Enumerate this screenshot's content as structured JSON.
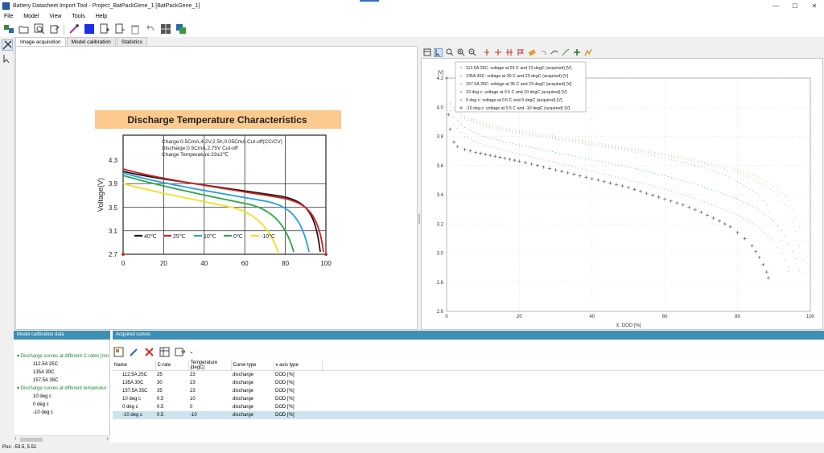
{
  "window": {
    "title": "Battery Datasheet Import Tool - Project_BatPackGene_1 [BatPackGene_1]",
    "minimize": "—",
    "maximize": "☐",
    "close": "✕"
  },
  "menu": [
    "File",
    "Model",
    "View",
    "Tools",
    "Help"
  ],
  "tabs": [
    "Image acquisition",
    "Model calibration",
    "Statistics"
  ],
  "datasheet": {
    "partial_header": "",
    "title": "Discharge Temperature Characteristics",
    "conditions": [
      "Charge:0.5CmA,4.2V,2.5h,0.05CmA Cut-off(CC/CV)",
      "Discharge:0.5CmA,2.75V Cut-off",
      "Charge Temperature:23±2℃"
    ],
    "ylabel": "Voltage(V)",
    "yticks": [
      "4.3",
      "3.9",
      "3.5",
      "3.1",
      "2.7"
    ],
    "xticks": [
      "0",
      "20",
      "40",
      "60",
      "80",
      "100"
    ],
    "legend": [
      {
        "label": "40℃",
        "color": "#1a1a1a"
      },
      {
        "label": "25℃",
        "color": "#d42020"
      },
      {
        "label": "10℃",
        "color": "#2a9fe0"
      },
      {
        "label": "0℃",
        "color": "#2aa84a"
      },
      {
        "label": "-10℃",
        "color": "#f0e020"
      }
    ]
  },
  "chart_data": {
    "type": "scatter",
    "xlabel": "X: DOD [%]",
    "ylabel": "[V]",
    "xlim": [
      0,
      100
    ],
    "ylim": [
      2.6,
      4.2
    ],
    "xticks": [
      "0",
      "20",
      "40",
      "60",
      "80",
      "100"
    ],
    "yticks": [
      "2.6",
      "2.8",
      "3.0",
      "3.2",
      "3.4",
      "3.6",
      "3.8",
      "4.0",
      "4.2"
    ],
    "legend_position": "top-center",
    "series": [
      {
        "name": "112.5A 25C: voltage at 25 C and 23 degC (acquired) [V]",
        "color": "#b0b0b0",
        "x": [
          0,
          2,
          5,
          10,
          20,
          30,
          40,
          50,
          60,
          70,
          75,
          80,
          85,
          88,
          91,
          93,
          95
        ],
        "y": [
          4.05,
          3.98,
          3.92,
          3.87,
          3.82,
          3.78,
          3.74,
          3.7,
          3.65,
          3.59,
          3.55,
          3.49,
          3.41,
          3.33,
          3.18,
          3.0,
          2.8
        ]
      },
      {
        "name": "135A 30C: voltage at 30 C and 23 degC (acquired) [V]",
        "color": "#a8c8a0",
        "x": [
          0,
          2,
          5,
          10,
          20,
          30,
          40,
          50,
          60,
          70,
          80,
          85,
          90,
          93,
          96,
          98,
          99.5
        ],
        "y": [
          4.06,
          3.99,
          3.93,
          3.88,
          3.83,
          3.79,
          3.75,
          3.71,
          3.67,
          3.62,
          3.55,
          3.5,
          3.42,
          3.33,
          3.15,
          2.95,
          2.78
        ]
      },
      {
        "name": "157.5A 35C: voltage at 35 C and 23 degC (acquired) [V]",
        "color": "#b8c890",
        "x": [
          0,
          2,
          5,
          10,
          20,
          30,
          40,
          50,
          60,
          70,
          80,
          85,
          90,
          94,
          97,
          99,
          100
        ],
        "y": [
          4.07,
          4.0,
          3.94,
          3.89,
          3.84,
          3.8,
          3.76,
          3.72,
          3.68,
          3.63,
          3.57,
          3.53,
          3.46,
          3.36,
          3.18,
          2.98,
          2.78
        ]
      },
      {
        "name": "10 deg c: voltage at 0.5 C and 10 degC (acquired) [V]",
        "color": "#60a8d0",
        "x": [
          0,
          2,
          5,
          10,
          20,
          30,
          40,
          50,
          60,
          70,
          80,
          85,
          90,
          93,
          96,
          98
        ],
        "y": [
          4.02,
          3.93,
          3.86,
          3.8,
          3.74,
          3.69,
          3.64,
          3.59,
          3.53,
          3.46,
          3.37,
          3.31,
          3.22,
          3.12,
          2.96,
          2.8
        ]
      },
      {
        "name": "0 deg c: voltage at 0.5 C and 0 degC (acquired) [V]",
        "color": "#90c070",
        "x": [
          0,
          2,
          5,
          10,
          20,
          30,
          40,
          50,
          60,
          70,
          80,
          85,
          90,
          93,
          95
        ],
        "y": [
          4.0,
          3.88,
          3.8,
          3.74,
          3.68,
          3.62,
          3.56,
          3.5,
          3.44,
          3.36,
          3.26,
          3.19,
          3.08,
          2.95,
          2.8
        ]
      },
      {
        "name": "-10 deg c: voltage at 0.5 C and -10 degC (acquired) [V]",
        "color": "#606060",
        "x": [
          0,
          0.5,
          1,
          2,
          3,
          5,
          8,
          12,
          16,
          20,
          25,
          30,
          35,
          40,
          45,
          50,
          55,
          60,
          65,
          70,
          75,
          78,
          80,
          82,
          84,
          85,
          86,
          87,
          88,
          88.5,
          89
        ],
        "y": [
          4.2,
          3.95,
          3.85,
          3.76,
          3.73,
          3.71,
          3.69,
          3.67,
          3.65,
          3.63,
          3.6,
          3.57,
          3.54,
          3.51,
          3.48,
          3.45,
          3.41,
          3.37,
          3.33,
          3.28,
          3.22,
          3.18,
          3.14,
          3.1,
          3.05,
          3.01,
          2.97,
          2.92,
          2.87,
          2.83,
          2.79
        ]
      }
    ]
  },
  "calibration": {
    "header": "Model calibration data",
    "groups": [
      {
        "label": "Discharge curves at different C-rates [mo",
        "children": [
          "112.5A 25C",
          "135A 30C",
          "157.5A 35C"
        ]
      },
      {
        "label": "Discharge curves at different temperatur",
        "children": [
          "10 deg c",
          "0 deg c",
          "-10 deg c"
        ]
      }
    ]
  },
  "acquired": {
    "header": "Acquired curves",
    "columns": [
      "Name",
      "C-rate",
      "Temperature [degC]",
      "Curve type",
      "x axis type"
    ],
    "rows": [
      [
        "112.5A 25C",
        "25",
        "23",
        "discharge",
        "DOD [%]"
      ],
      [
        "135A 30C",
        "30",
        "23",
        "discharge",
        "DOD [%]"
      ],
      [
        "157.5A 35C",
        "35",
        "23",
        "discharge",
        "DOD [%]"
      ],
      [
        "10 deg c",
        "0.5",
        "10",
        "discharge",
        "DOD [%]"
      ],
      [
        "0 deg c",
        "0.5",
        "0",
        "discharge",
        "DOD [%]"
      ],
      [
        "-10 deg c",
        "0.5",
        "-10",
        "discharge",
        "DOD [%]"
      ]
    ],
    "selected_row": 5
  },
  "status": {
    "pos": "Pos: -53.5, 5.51"
  }
}
